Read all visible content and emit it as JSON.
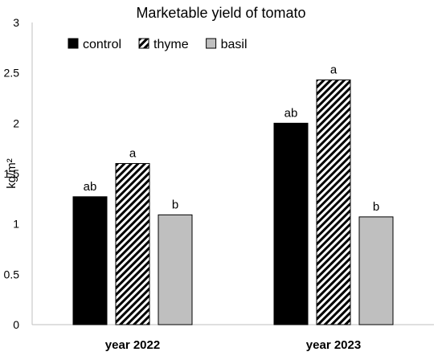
{
  "chart_data": {
    "type": "bar",
    "title": "Marketable yield of tomato",
    "ylabel": "kg/m²",
    "xlabel": "",
    "categories": [
      "year 2022",
      "year 2023"
    ],
    "ylim": [
      0,
      3
    ],
    "yticks": [
      "0",
      "0.5",
      "1",
      "1.5",
      "2",
      "2.5",
      "3"
    ],
    "grid": false,
    "legend_position": "top-left",
    "series": [
      {
        "name": "control",
        "values": [
          1.27,
          2.0
        ],
        "labels": [
          "ab",
          "ab"
        ],
        "fill": "solid",
        "color": "#000000"
      },
      {
        "name": "thyme",
        "values": [
          1.6,
          2.43
        ],
        "labels": [
          "a",
          "a"
        ],
        "fill": "diagonal-hatch",
        "color": "#000000"
      },
      {
        "name": "basil",
        "values": [
          1.09,
          1.07
        ],
        "labels": [
          "b",
          "b"
        ],
        "fill": "solid",
        "color": "#bfbfbf"
      }
    ]
  }
}
